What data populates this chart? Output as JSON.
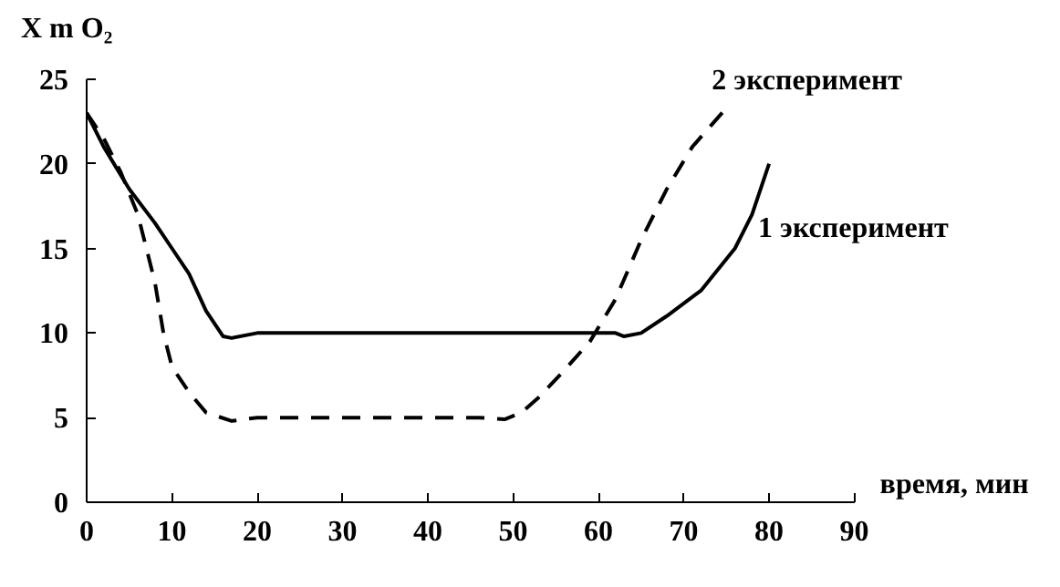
{
  "chart_data": {
    "type": "line",
    "xlabel": "время, мин",
    "ylabel": "X m O₂",
    "xlim": [
      0,
      90
    ],
    "ylim": [
      0,
      25
    ],
    "xticks": [
      0,
      10,
      20,
      30,
      40,
      50,
      60,
      70,
      80,
      90
    ],
    "yticks": [
      0,
      5,
      10,
      15,
      20,
      25
    ],
    "grid": false,
    "legend": false,
    "series": [
      {
        "name": "1 эксперимент",
        "color": "#000000",
        "line_style": "solid",
        "x": [
          0,
          2,
          5,
          8,
          10,
          12,
          14,
          16,
          17,
          20,
          30,
          40,
          50,
          60,
          62,
          63,
          65,
          68,
          72,
          76,
          78,
          80
        ],
        "values": [
          23,
          21,
          18.5,
          16.5,
          15,
          13.5,
          11.3,
          9.8,
          9.7,
          10,
          10,
          10,
          10,
          10,
          10,
          9.8,
          10,
          11,
          12.5,
          15,
          17,
          20
        ]
      },
      {
        "name": "2 эксперимент",
        "color": "#000000",
        "line_style": "dashed",
        "x": [
          0,
          2,
          4,
          6,
          8,
          9,
          10,
          12,
          14,
          17,
          20,
          30,
          40,
          46,
          49,
          51,
          53,
          56,
          59,
          62,
          65,
          68,
          71,
          75
        ],
        "values": [
          23,
          21.5,
          19.5,
          17,
          13,
          10,
          8,
          6.5,
          5.3,
          4.8,
          5,
          5,
          5,
          5,
          4.9,
          5.3,
          6.2,
          7.8,
          9.5,
          12,
          15.5,
          18.5,
          21,
          23.3
        ]
      }
    ]
  }
}
